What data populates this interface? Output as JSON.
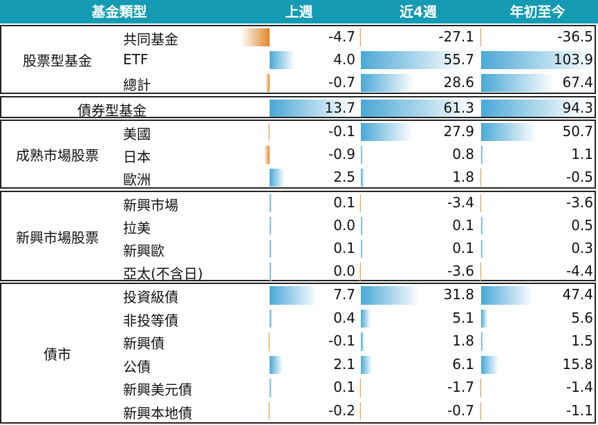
{
  "header": {
    "category": "基金類型",
    "week": "上週",
    "four_weeks": "近4週",
    "ytd": "年初至今"
  },
  "colors": {
    "header_bg": "#149bb3",
    "positive_bar": "#4aa8d6",
    "negative_bar": "#e0862a"
  },
  "groups": [
    {
      "name": "股票型基金",
      "rows": [
        {
          "label": "共同基金",
          "week": -4.7,
          "four_weeks": -27.1,
          "ytd": -36.5
        },
        {
          "label": "ETF",
          "week": 4.0,
          "four_weeks": 55.7,
          "ytd": 103.9
        },
        {
          "label": "總計",
          "week": -0.7,
          "four_weeks": 28.6,
          "ytd": 67.4
        }
      ]
    },
    {
      "name": "",
      "rows": [
        {
          "label": "債券型基金",
          "week": 13.7,
          "four_weeks": 61.3,
          "ytd": 94.3
        }
      ]
    },
    {
      "name": "成熟市場股票",
      "rows": [
        {
          "label": "美國",
          "week": -0.1,
          "four_weeks": 27.9,
          "ytd": 50.7
        },
        {
          "label": "日本",
          "week": -0.9,
          "four_weeks": 0.8,
          "ytd": 1.1
        },
        {
          "label": "歐洲",
          "week": 2.5,
          "four_weeks": 1.8,
          "ytd": -0.5
        }
      ]
    },
    {
      "name": "新興市場股票",
      "rows": [
        {
          "label": "新興市場",
          "week": 0.1,
          "four_weeks": -3.4,
          "ytd": -3.6
        },
        {
          "label": "拉美",
          "week": 0.0,
          "four_weeks": 0.1,
          "ytd": 0.5
        },
        {
          "label": "新興歐",
          "week": 0.1,
          "four_weeks": 0.1,
          "ytd": 0.3
        },
        {
          "label": "亞太(不含日)",
          "week": 0.0,
          "four_weeks": -3.6,
          "ytd": -4.4
        }
      ]
    },
    {
      "name": "債市",
      "rows": [
        {
          "label": "投資級債",
          "week": 7.7,
          "four_weeks": 31.8,
          "ytd": 47.4
        },
        {
          "label": "非投等債",
          "week": 0.4,
          "four_weeks": 5.1,
          "ytd": 5.6
        },
        {
          "label": "新興債",
          "week": -0.1,
          "four_weeks": 1.8,
          "ytd": 1.5
        },
        {
          "label": "公債",
          "week": 2.1,
          "four_weeks": 6.1,
          "ytd": 15.8
        },
        {
          "label": "新興美元債",
          "week": 0.1,
          "four_weeks": -1.7,
          "ytd": -1.4
        },
        {
          "label": "新興本地債",
          "week": -0.2,
          "four_weeks": -0.7,
          "ytd": -1.1
        }
      ]
    }
  ]
}
